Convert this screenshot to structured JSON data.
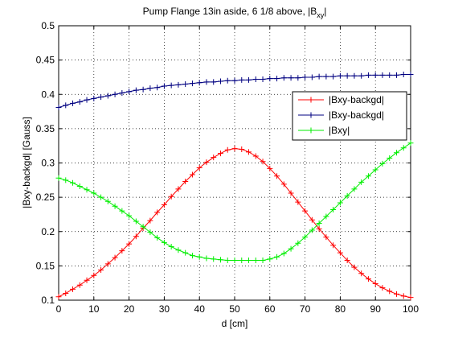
{
  "chart_data": {
    "type": "line",
    "title": "Pump Flange 13in aside, 6 1/8 above, |B",
    "title_sub": "xy",
    "title_end": "|",
    "xlabel": "d [cm]",
    "ylabel": "|Bxy-backgd| [Gauss]",
    "xlim": [
      0,
      100
    ],
    "ylim": [
      0.1,
      0.5
    ],
    "xticks": [
      0,
      10,
      20,
      30,
      40,
      50,
      60,
      70,
      80,
      90,
      100
    ],
    "yticks": [
      0.1,
      0.15,
      0.2,
      0.25,
      0.3,
      0.35,
      0.4,
      0.45,
      0.5
    ],
    "ytick_labels": [
      "0.1",
      "0.15",
      "0.2",
      "0.25",
      "0.3",
      "0.35",
      "0.4",
      "0.45",
      "0.5"
    ],
    "grid": true,
    "legend_position": "top-right",
    "x": [
      0,
      2,
      4,
      6,
      8,
      10,
      12,
      14,
      16,
      18,
      20,
      22,
      24,
      26,
      28,
      30,
      32,
      34,
      36,
      38,
      40,
      42,
      44,
      46,
      48,
      50,
      52,
      54,
      56,
      58,
      60,
      62,
      64,
      66,
      68,
      70,
      72,
      74,
      76,
      78,
      80,
      82,
      84,
      86,
      88,
      90,
      92,
      94,
      96,
      98,
      100
    ],
    "series": [
      {
        "name": "|Bxy-backgd|",
        "color": "#ff0000",
        "values": [
          0.105,
          0.11,
          0.116,
          0.122,
          0.129,
          0.136,
          0.144,
          0.153,
          0.162,
          0.172,
          0.182,
          0.193,
          0.205,
          0.216,
          0.228,
          0.239,
          0.251,
          0.262,
          0.273,
          0.283,
          0.293,
          0.301,
          0.308,
          0.314,
          0.319,
          0.321,
          0.32,
          0.316,
          0.31,
          0.302,
          0.292,
          0.281,
          0.269,
          0.256,
          0.243,
          0.23,
          0.217,
          0.204,
          0.192,
          0.18,
          0.169,
          0.158,
          0.148,
          0.139,
          0.131,
          0.124,
          0.118,
          0.113,
          0.109,
          0.106,
          0.104
        ]
      },
      {
        "name": "|Bxy-backgd|",
        "color": "#000080",
        "values": [
          0.381,
          0.384,
          0.387,
          0.389,
          0.392,
          0.394,
          0.396,
          0.398,
          0.4,
          0.402,
          0.404,
          0.406,
          0.407,
          0.409,
          0.41,
          0.412,
          0.413,
          0.414,
          0.415,
          0.416,
          0.417,
          0.418,
          0.418,
          0.419,
          0.42,
          0.42,
          0.421,
          0.421,
          0.422,
          0.422,
          0.423,
          0.423,
          0.424,
          0.424,
          0.424,
          0.425,
          0.425,
          0.426,
          0.426,
          0.426,
          0.427,
          0.427,
          0.427,
          0.427,
          0.428,
          0.428,
          0.428,
          0.428,
          0.428,
          0.429,
          0.429
        ]
      },
      {
        "name": "|Bxy|",
        "color": "#00ee00",
        "values": [
          0.278,
          0.275,
          0.271,
          0.266,
          0.261,
          0.256,
          0.25,
          0.244,
          0.237,
          0.23,
          0.223,
          0.215,
          0.207,
          0.199,
          0.191,
          0.184,
          0.178,
          0.173,
          0.169,
          0.165,
          0.163,
          0.161,
          0.16,
          0.159,
          0.158,
          0.158,
          0.158,
          0.158,
          0.158,
          0.158,
          0.16,
          0.163,
          0.168,
          0.175,
          0.183,
          0.192,
          0.202,
          0.212,
          0.222,
          0.232,
          0.242,
          0.252,
          0.262,
          0.272,
          0.281,
          0.29,
          0.299,
          0.307,
          0.315,
          0.322,
          0.329
        ]
      }
    ]
  }
}
